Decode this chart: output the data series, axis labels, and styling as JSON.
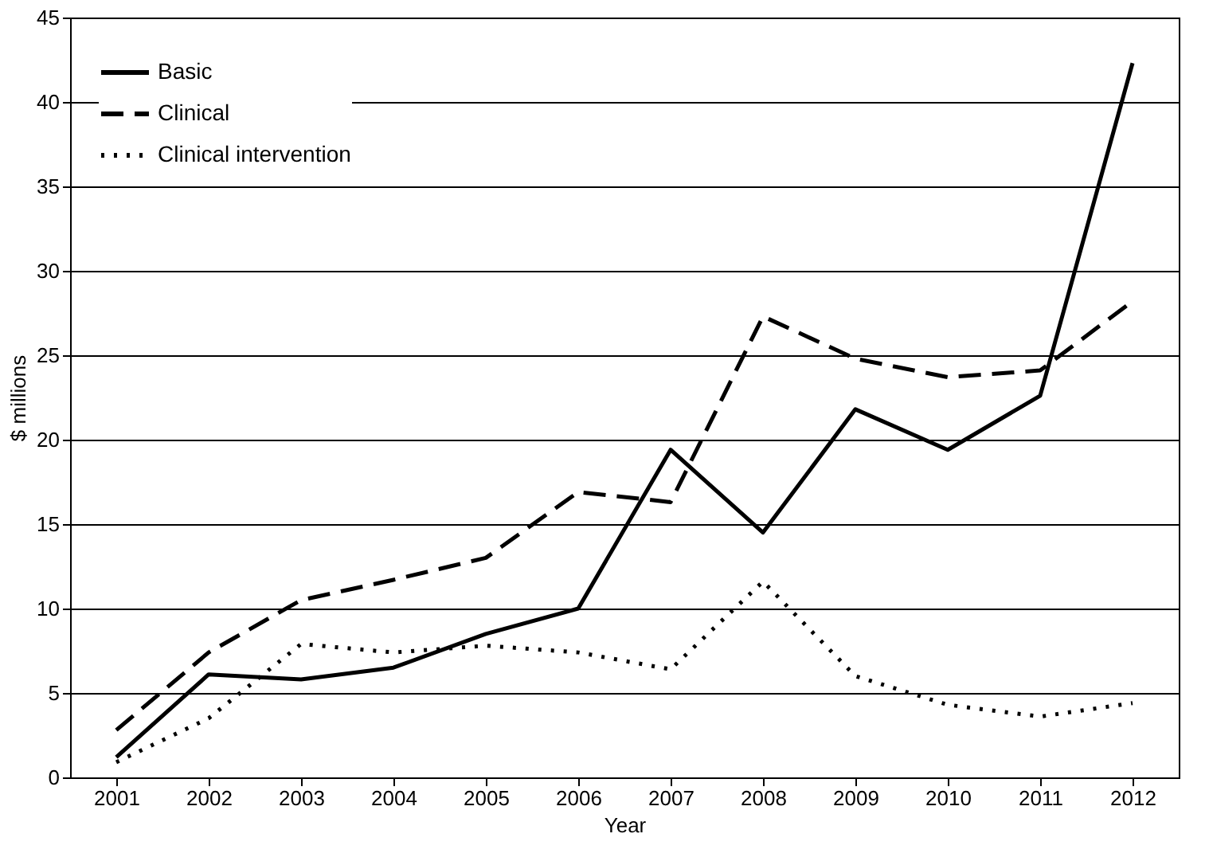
{
  "chart_data": {
    "type": "line",
    "xlabel": "Year",
    "ylabel": "$ millions",
    "categories": [
      "2001",
      "2002",
      "2003",
      "2004",
      "2005",
      "2006",
      "2007",
      "2008",
      "2009",
      "2010",
      "2011",
      "2012"
    ],
    "series": [
      {
        "name": "Basic",
        "color": "#000000",
        "line_style": "solid",
        "values": [
          1.2,
          6.1,
          5.8,
          6.5,
          8.5,
          10,
          19.4,
          14.5,
          21.8,
          19.4,
          22.6,
          42.3
        ]
      },
      {
        "name": "Clinical",
        "color": "#000000",
        "line_style": "dashed",
        "values": [
          2.8,
          7.4,
          10.5,
          11.7,
          13,
          16.9,
          16.3,
          27.3,
          24.8,
          23.7,
          24.1,
          28.2
        ]
      },
      {
        "name": "Clinical intervention",
        "color": "#000000",
        "line_style": "dotted",
        "values": [
          0.9,
          3.5,
          7.9,
          7.4,
          7.8,
          7.4,
          6.4,
          11.6,
          6,
          4.3,
          3.6,
          4.4
        ]
      }
    ],
    "ylim": [
      0,
      45
    ],
    "yticks": [
      0,
      5,
      10,
      15,
      20,
      25,
      30,
      35,
      40,
      45
    ],
    "grid": "y",
    "legend": "top left",
    "marker": "none"
  }
}
